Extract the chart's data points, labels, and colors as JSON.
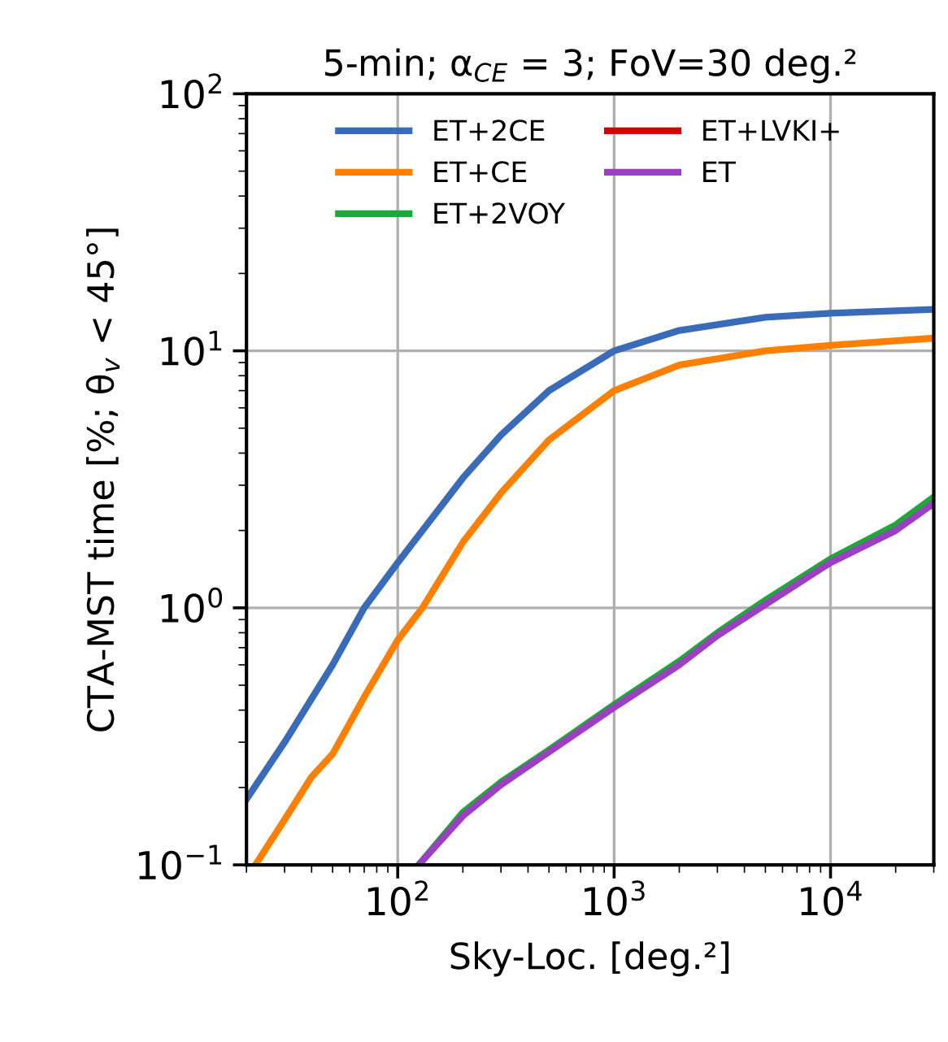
{
  "chart_data": {
    "type": "line",
    "title": "5-min; α$_{CE}$ = 3; FoV=30 deg.²",
    "xlabel": "Sky-Loc. [deg.²]",
    "ylabel": "CTA-MST time [%; θ$_{v}$ < 45°]",
    "log": "xy",
    "grid": true,
    "legend": "top",
    "line_style": "solid",
    "marker": "none",
    "xlim": [
      20,
      30000
    ],
    "ylim": [
      0.1,
      100
    ],
    "xticks": [
      {
        "value": 100,
        "label": "10$^{2}$"
      },
      {
        "value": 1000,
        "label": "10$^{3}$"
      },
      {
        "value": 10000,
        "label": "10$^{4}$"
      }
    ],
    "yticks": [
      {
        "value": 0.1,
        "label": "10$^{−1}$"
      },
      {
        "value": 1,
        "label": "10$^{0}$"
      },
      {
        "value": 10,
        "label": "10$^{1}$"
      },
      {
        "value": 100,
        "label": "10$^{2}$"
      }
    ],
    "series": [
      {
        "name": "ET+2CE",
        "color": "#3a6bb8",
        "x": [
          20,
          30,
          50,
          70,
          100,
          200,
          300,
          500,
          1000,
          2000,
          5000,
          10000,
          30000
        ],
        "values": [
          0.18,
          0.3,
          0.6,
          1.0,
          1.5,
          3.2,
          4.7,
          7.0,
          10,
          12,
          13.5,
          14,
          14.5
        ]
      },
      {
        "name": "ET+CE",
        "color": "#ff8000",
        "x": [
          22,
          30,
          40,
          50,
          70,
          100,
          130,
          200,
          300,
          500,
          1000,
          2000,
          5000,
          10000,
          30000
        ],
        "values": [
          0.1,
          0.15,
          0.22,
          0.27,
          0.45,
          0.75,
          1.0,
          1.8,
          2.8,
          4.5,
          7.0,
          8.8,
          10,
          10.5,
          11.2
        ]
      },
      {
        "name": "ET+2VOY",
        "color": "#1fa83a",
        "x": [
          125,
          200,
          300,
          500,
          1000,
          2000,
          3000,
          5000,
          10000,
          20000,
          30000
        ],
        "values": [
          0.1,
          0.16,
          0.21,
          0.28,
          0.42,
          0.62,
          0.8,
          1.07,
          1.55,
          2.1,
          2.7
        ]
      },
      {
        "name": "ET+LVKI+",
        "color": "#d40000"
      },
      {
        "name": "ET",
        "color": "#9c3fc0",
        "x": [
          125,
          200,
          300,
          500,
          1000,
          2000,
          3000,
          5000,
          10000,
          20000,
          30000
        ],
        "values": [
          0.1,
          0.155,
          0.205,
          0.275,
          0.41,
          0.6,
          0.78,
          1.03,
          1.5,
          2.0,
          2.55
        ]
      }
    ]
  }
}
